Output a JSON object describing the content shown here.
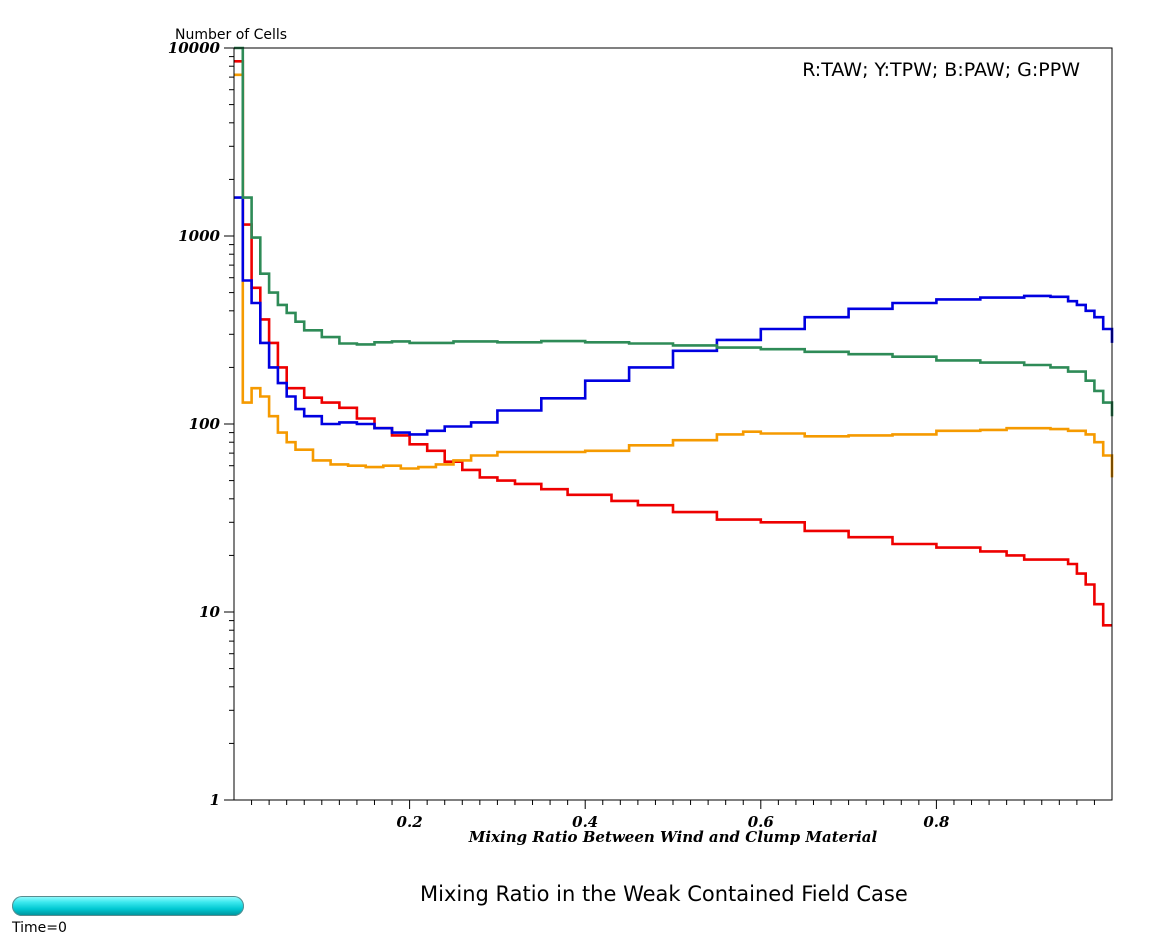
{
  "chart_data": {
    "type": "line",
    "step": true,
    "title": "Mixing Ratio in the Weak Contained Field Case",
    "xlabel": "Mixing Ratio Between Wind and Clump Material",
    "ylabel": "Number of Cells",
    "xlim": [
      0,
      1
    ],
    "ylim": [
      1,
      10000
    ],
    "yscale": "log",
    "xticks": [
      0.2,
      0.4,
      0.6,
      0.8
    ],
    "yticks": [
      1,
      10,
      100,
      1000,
      10000
    ],
    "legend": "R:TAW; Y:TPW; B:PAW; G:PPW",
    "legend_position": "top-right",
    "grid": false,
    "series": [
      {
        "code": "R",
        "color": "#ee0000",
        "x": [
          0.0,
          0.01,
          0.02,
          0.03,
          0.04,
          0.05,
          0.06,
          0.08,
          0.1,
          0.12,
          0.14,
          0.16,
          0.18,
          0.2,
          0.22,
          0.24,
          0.26,
          0.28,
          0.3,
          0.32,
          0.35,
          0.38,
          0.4,
          0.43,
          0.46,
          0.5,
          0.55,
          0.6,
          0.65,
          0.7,
          0.75,
          0.8,
          0.85,
          0.88,
          0.9,
          0.93,
          0.95,
          0.96,
          0.97,
          0.98,
          0.99,
          1.0
        ],
        "y": [
          8500,
          1150,
          530,
          360,
          270,
          200,
          155,
          138,
          130,
          122,
          107,
          95,
          87,
          78,
          72,
          63,
          57,
          52,
          50,
          48,
          45,
          42,
          42,
          39,
          37,
          34,
          31,
          30,
          27,
          25,
          23,
          22,
          21,
          20,
          19,
          19,
          18,
          16,
          14,
          11,
          8.5,
          8.5
        ]
      },
      {
        "code": "Y",
        "color": "#f59a00",
        "x": [
          0.0,
          0.01,
          0.02,
          0.03,
          0.04,
          0.05,
          0.06,
          0.07,
          0.09,
          0.11,
          0.13,
          0.15,
          0.17,
          0.19,
          0.21,
          0.23,
          0.25,
          0.27,
          0.3,
          0.35,
          0.4,
          0.45,
          0.5,
          0.55,
          0.58,
          0.6,
          0.65,
          0.7,
          0.75,
          0.8,
          0.85,
          0.88,
          0.9,
          0.93,
          0.95,
          0.97,
          0.98,
          0.99,
          1.0
        ],
        "y": [
          7200,
          130,
          155,
          140,
          110,
          90,
          80,
          73,
          64,
          61,
          60,
          59,
          60,
          58,
          59,
          61,
          64,
          68,
          71,
          71,
          72,
          77,
          82,
          88,
          91,
          89,
          86,
          87,
          88,
          92,
          93,
          95,
          95,
          94,
          92,
          88,
          80,
          68,
          52
        ]
      },
      {
        "code": "B",
        "color": "#0000e0",
        "x": [
          0.0,
          0.01,
          0.02,
          0.03,
          0.04,
          0.05,
          0.06,
          0.07,
          0.08,
          0.1,
          0.12,
          0.14,
          0.16,
          0.18,
          0.2,
          0.22,
          0.24,
          0.27,
          0.3,
          0.35,
          0.4,
          0.45,
          0.5,
          0.55,
          0.6,
          0.65,
          0.7,
          0.75,
          0.8,
          0.85,
          0.9,
          0.93,
          0.95,
          0.96,
          0.97,
          0.98,
          0.99,
          1.0
        ],
        "y": [
          1600,
          580,
          440,
          270,
          200,
          165,
          140,
          120,
          110,
          100,
          102,
          100,
          95,
          90,
          88,
          92,
          97,
          102,
          118,
          137,
          170,
          200,
          245,
          280,
          320,
          370,
          410,
          440,
          460,
          470,
          480,
          475,
          450,
          430,
          400,
          370,
          320,
          270
        ]
      },
      {
        "code": "G",
        "color": "#2e8b57",
        "x": [
          0.0,
          0.01,
          0.02,
          0.03,
          0.04,
          0.05,
          0.06,
          0.07,
          0.08,
          0.1,
          0.12,
          0.14,
          0.16,
          0.18,
          0.2,
          0.25,
          0.3,
          0.35,
          0.4,
          0.45,
          0.5,
          0.55,
          0.6,
          0.65,
          0.7,
          0.75,
          0.8,
          0.85,
          0.9,
          0.93,
          0.95,
          0.97,
          0.98,
          0.99,
          1.0
        ],
        "y": [
          10000,
          1600,
          980,
          630,
          500,
          430,
          390,
          350,
          315,
          290,
          268,
          265,
          272,
          275,
          270,
          275,
          272,
          276,
          272,
          268,
          262,
          255,
          250,
          242,
          235,
          228,
          218,
          212,
          206,
          200,
          190,
          170,
          150,
          130,
          110
        ]
      }
    ]
  },
  "footer": {
    "time_label": "Time=0"
  }
}
